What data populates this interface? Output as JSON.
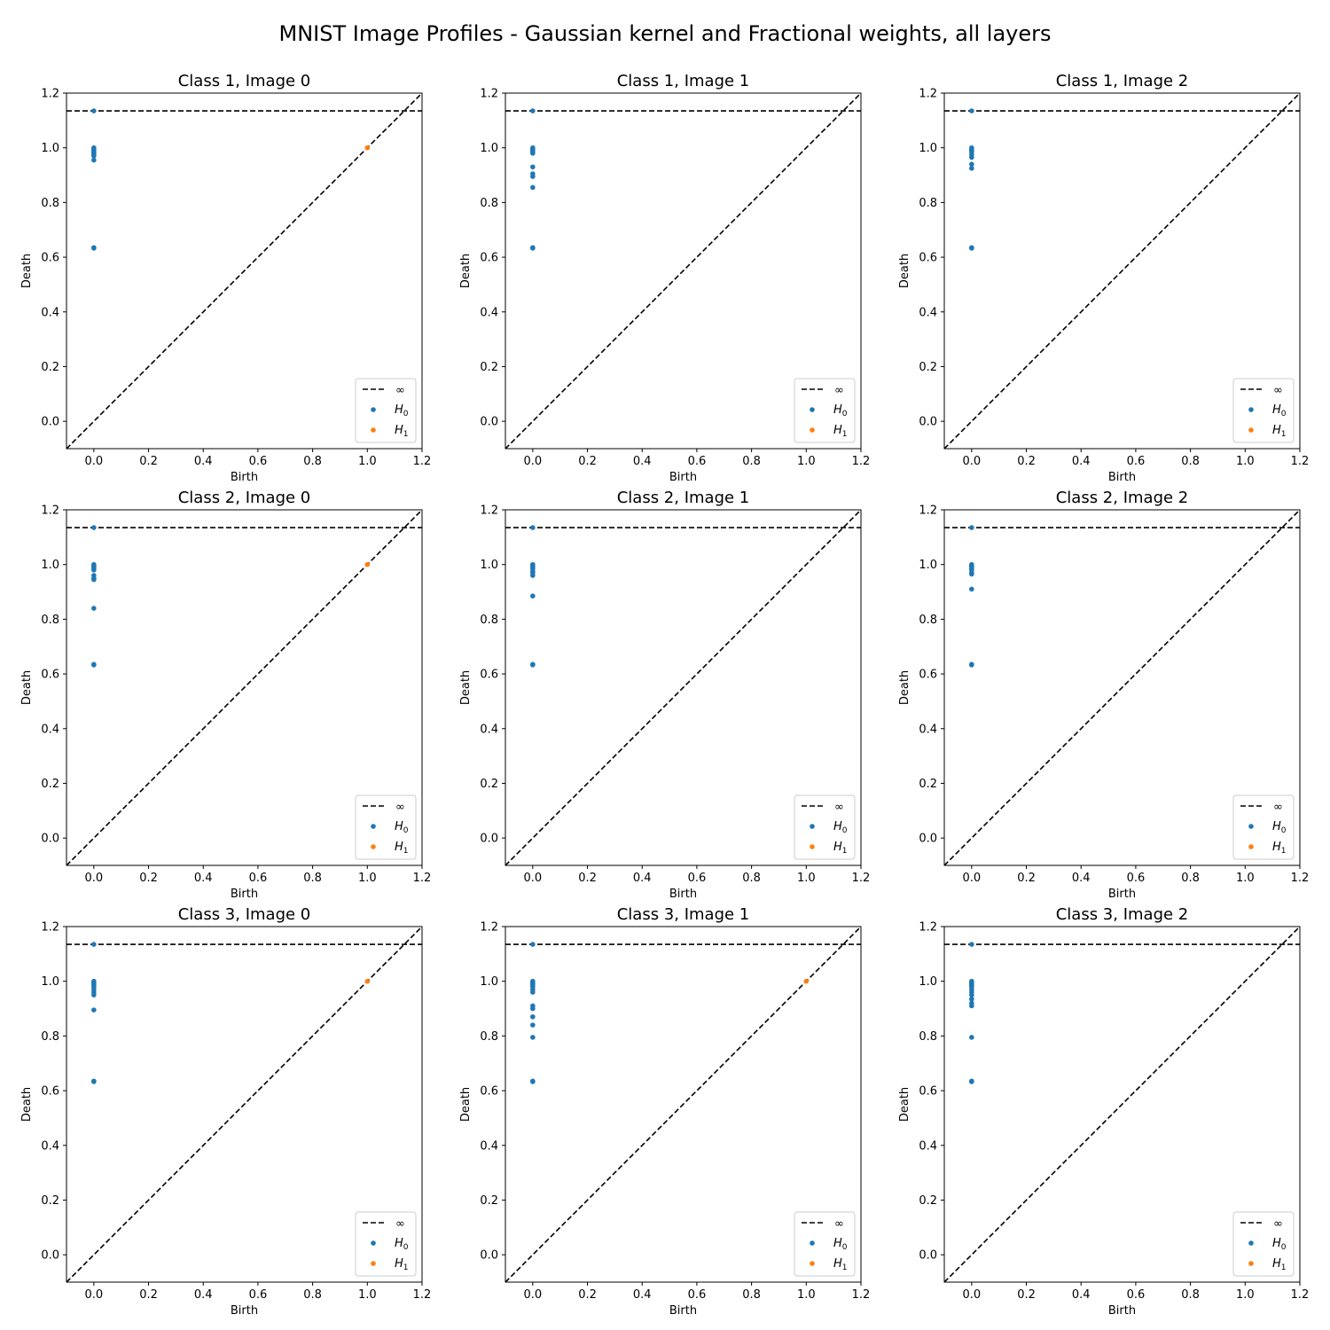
{
  "figure": {
    "suptitle": "MNIST Image Profiles - Gaussian kernel and Fractional weights, all layers"
  },
  "colors": {
    "H0": "#1f77b4",
    "H1": "#ff7f0e",
    "lines": "#000000"
  },
  "chart_data": [
    {
      "type": "scatter",
      "title": "Class 1, Image 0",
      "xlabel": "Birth",
      "ylabel": "Death",
      "xlim": [
        -0.1,
        1.2
      ],
      "ylim": [
        -0.1,
        1.2
      ],
      "xticks": [
        "0.0",
        "0.2",
        "0.4",
        "0.6",
        "0.8",
        "1.0",
        "1.2"
      ],
      "yticks": [
        "0.0",
        "0.2",
        "0.4",
        "0.6",
        "0.8",
        "1.0",
        "1.2"
      ],
      "infinity_level": 1.135,
      "legend": {
        "position": "lower-right",
        "entries": [
          "∞",
          "H0",
          "H1"
        ]
      },
      "series": [
        {
          "name": "H0",
          "points": [
            [
              0,
              1.135
            ],
            [
              0,
              1.0
            ],
            [
              0,
              0.995
            ],
            [
              0,
              0.99
            ],
            [
              0,
              0.985
            ],
            [
              0,
              0.98
            ],
            [
              0,
              0.975
            ],
            [
              0,
              0.97
            ],
            [
              0,
              0.955
            ],
            [
              0,
              0.635
            ],
            [
              0,
              0.633
            ]
          ]
        },
        {
          "name": "H1",
          "points": [
            [
              1.0,
              1.0
            ]
          ]
        }
      ]
    },
    {
      "type": "scatter",
      "title": "Class 1, Image 1",
      "xlabel": "Birth",
      "ylabel": "Death",
      "xlim": [
        -0.1,
        1.2
      ],
      "ylim": [
        -0.1,
        1.2
      ],
      "xticks": [
        "0.0",
        "0.2",
        "0.4",
        "0.6",
        "0.8",
        "1.0",
        "1.2"
      ],
      "yticks": [
        "0.0",
        "0.2",
        "0.4",
        "0.6",
        "0.8",
        "1.0",
        "1.2"
      ],
      "infinity_level": 1.135,
      "legend": {
        "position": "lower-right",
        "entries": [
          "∞",
          "H0",
          "H1"
        ]
      },
      "series": [
        {
          "name": "H0",
          "points": [
            [
              0,
              1.135
            ],
            [
              0,
              1.0
            ],
            [
              0,
              0.995
            ],
            [
              0,
              0.99
            ],
            [
              0,
              0.985
            ],
            [
              0,
              0.98
            ],
            [
              0,
              0.93
            ],
            [
              0,
              0.905
            ],
            [
              0,
              0.895
            ],
            [
              0,
              0.855
            ],
            [
              0,
              0.635
            ],
            [
              0,
              0.633
            ]
          ]
        },
        {
          "name": "H1",
          "points": []
        }
      ]
    },
    {
      "type": "scatter",
      "title": "Class 1, Image 2",
      "xlabel": "Birth",
      "ylabel": "Death",
      "xlim": [
        -0.1,
        1.2
      ],
      "ylim": [
        -0.1,
        1.2
      ],
      "xticks": [
        "0.0",
        "0.2",
        "0.4",
        "0.6",
        "0.8",
        "1.0",
        "1.2"
      ],
      "yticks": [
        "0.0",
        "0.2",
        "0.4",
        "0.6",
        "0.8",
        "1.0",
        "1.2"
      ],
      "infinity_level": 1.135,
      "legend": {
        "position": "lower-right",
        "entries": [
          "∞",
          "H0",
          "H1"
        ]
      },
      "series": [
        {
          "name": "H0",
          "points": [
            [
              0,
              1.135
            ],
            [
              0,
              1.0
            ],
            [
              0,
              0.995
            ],
            [
              0,
              0.99
            ],
            [
              0,
              0.985
            ],
            [
              0,
              0.975
            ],
            [
              0,
              0.965
            ],
            [
              0,
              0.94
            ],
            [
              0,
              0.925
            ],
            [
              0,
              0.635
            ],
            [
              0,
              0.633
            ]
          ]
        },
        {
          "name": "H1",
          "points": []
        }
      ]
    },
    {
      "type": "scatter",
      "title": "Class 2, Image 0",
      "xlabel": "Birth",
      "ylabel": "Death",
      "xlim": [
        -0.1,
        1.2
      ],
      "ylim": [
        -0.1,
        1.2
      ],
      "xticks": [
        "0.0",
        "0.2",
        "0.4",
        "0.6",
        "0.8",
        "1.0",
        "1.2"
      ],
      "yticks": [
        "0.0",
        "0.2",
        "0.4",
        "0.6",
        "0.8",
        "1.0",
        "1.2"
      ],
      "infinity_level": 1.135,
      "legend": {
        "position": "lower-right",
        "entries": [
          "∞",
          "H0",
          "H1"
        ]
      },
      "series": [
        {
          "name": "H0",
          "points": [
            [
              0,
              1.135
            ],
            [
              0,
              1.0
            ],
            [
              0,
              0.995
            ],
            [
              0,
              0.99
            ],
            [
              0,
              0.985
            ],
            [
              0,
              0.98
            ],
            [
              0,
              0.96
            ],
            [
              0,
              0.95
            ],
            [
              0,
              0.945
            ],
            [
              0,
              0.84
            ],
            [
              0,
              0.635
            ],
            [
              0,
              0.633
            ]
          ]
        },
        {
          "name": "H1",
          "points": [
            [
              1.0,
              1.0
            ]
          ]
        }
      ]
    },
    {
      "type": "scatter",
      "title": "Class 2, Image 1",
      "xlabel": "Birth",
      "ylabel": "Death",
      "xlim": [
        -0.1,
        1.2
      ],
      "ylim": [
        -0.1,
        1.2
      ],
      "xticks": [
        "0.0",
        "0.2",
        "0.4",
        "0.6",
        "0.8",
        "1.0",
        "1.2"
      ],
      "yticks": [
        "0.0",
        "0.2",
        "0.4",
        "0.6",
        "0.8",
        "1.0",
        "1.2"
      ],
      "infinity_level": 1.135,
      "legend": {
        "position": "lower-right",
        "entries": [
          "∞",
          "H0",
          "H1"
        ]
      },
      "series": [
        {
          "name": "H0",
          "points": [
            [
              0,
              1.135
            ],
            [
              0,
              1.0
            ],
            [
              0,
              0.995
            ],
            [
              0,
              0.99
            ],
            [
              0,
              0.985
            ],
            [
              0,
              0.975
            ],
            [
              0,
              0.97
            ],
            [
              0,
              0.96
            ],
            [
              0,
              0.885
            ],
            [
              0,
              0.635
            ],
            [
              0,
              0.633
            ]
          ]
        },
        {
          "name": "H1",
          "points": []
        }
      ]
    },
    {
      "type": "scatter",
      "title": "Class 2, Image 2",
      "xlabel": "Birth",
      "ylabel": "Death",
      "xlim": [
        -0.1,
        1.2
      ],
      "ylim": [
        -0.1,
        1.2
      ],
      "xticks": [
        "0.0",
        "0.2",
        "0.4",
        "0.6",
        "0.8",
        "1.0",
        "1.2"
      ],
      "yticks": [
        "0.0",
        "0.2",
        "0.4",
        "0.6",
        "0.8",
        "1.0",
        "1.2"
      ],
      "infinity_level": 1.135,
      "legend": {
        "position": "lower-right",
        "entries": [
          "∞",
          "H0",
          "H1"
        ]
      },
      "series": [
        {
          "name": "H0",
          "points": [
            [
              0,
              1.135
            ],
            [
              0,
              1.0
            ],
            [
              0,
              0.995
            ],
            [
              0,
              0.99
            ],
            [
              0,
              0.985
            ],
            [
              0,
              0.98
            ],
            [
              0,
              0.97
            ],
            [
              0,
              0.965
            ],
            [
              0,
              0.91
            ],
            [
              0,
              0.635
            ],
            [
              0,
              0.633
            ]
          ]
        },
        {
          "name": "H1",
          "points": []
        }
      ]
    },
    {
      "type": "scatter",
      "title": "Class 3, Image 0",
      "xlabel": "Birth",
      "ylabel": "Death",
      "xlim": [
        -0.1,
        1.2
      ],
      "ylim": [
        -0.1,
        1.2
      ],
      "xticks": [
        "0.0",
        "0.2",
        "0.4",
        "0.6",
        "0.8",
        "1.0",
        "1.2"
      ],
      "yticks": [
        "0.0",
        "0.2",
        "0.4",
        "0.6",
        "0.8",
        "1.0",
        "1.2"
      ],
      "infinity_level": 1.135,
      "legend": {
        "position": "lower-right",
        "entries": [
          "∞",
          "H0",
          "H1"
        ]
      },
      "series": [
        {
          "name": "H0",
          "points": [
            [
              0,
              1.135
            ],
            [
              0,
              1.0
            ],
            [
              0,
              0.995
            ],
            [
              0,
              0.99
            ],
            [
              0,
              0.985
            ],
            [
              0,
              0.98
            ],
            [
              0,
              0.97
            ],
            [
              0,
              0.96
            ],
            [
              0,
              0.95
            ],
            [
              0,
              0.895
            ],
            [
              0,
              0.635
            ],
            [
              0,
              0.633
            ]
          ]
        },
        {
          "name": "H1",
          "points": [
            [
              1.0,
              1.0
            ]
          ]
        }
      ]
    },
    {
      "type": "scatter",
      "title": "Class 3, Image 1",
      "xlabel": "Birth",
      "ylabel": "Death",
      "xlim": [
        -0.1,
        1.2
      ],
      "ylim": [
        -0.1,
        1.2
      ],
      "xticks": [
        "0.0",
        "0.2",
        "0.4",
        "0.6",
        "0.8",
        "1.0",
        "1.2"
      ],
      "yticks": [
        "0.0",
        "0.2",
        "0.4",
        "0.6",
        "0.8",
        "1.0",
        "1.2"
      ],
      "infinity_level": 1.135,
      "legend": {
        "position": "lower-right",
        "entries": [
          "∞",
          "H0",
          "H1"
        ]
      },
      "series": [
        {
          "name": "H0",
          "points": [
            [
              0,
              1.135
            ],
            [
              0,
              1.0
            ],
            [
              0,
              0.995
            ],
            [
              0,
              0.99
            ],
            [
              0,
              0.985
            ],
            [
              0,
              0.98
            ],
            [
              0,
              0.97
            ],
            [
              0,
              0.96
            ],
            [
              0,
              0.91
            ],
            [
              0,
              0.9
            ],
            [
              0,
              0.87
            ],
            [
              0,
              0.84
            ],
            [
              0,
              0.795
            ],
            [
              0,
              0.635
            ],
            [
              0,
              0.633
            ]
          ]
        },
        {
          "name": "H1",
          "points": [
            [
              1.0,
              1.0
            ]
          ]
        }
      ]
    },
    {
      "type": "scatter",
      "title": "Class 3, Image 2",
      "xlabel": "Birth",
      "ylabel": "Death",
      "xlim": [
        -0.1,
        1.2
      ],
      "ylim": [
        -0.1,
        1.2
      ],
      "xticks": [
        "0.0",
        "0.2",
        "0.4",
        "0.6",
        "0.8",
        "1.0",
        "1.2"
      ],
      "yticks": [
        "0.0",
        "0.2",
        "0.4",
        "0.6",
        "0.8",
        "1.0",
        "1.2"
      ],
      "infinity_level": 1.135,
      "legend": {
        "position": "lower-right",
        "entries": [
          "∞",
          "H0",
          "H1"
        ]
      },
      "series": [
        {
          "name": "H0",
          "points": [
            [
              0,
              1.135
            ],
            [
              0,
              1.0
            ],
            [
              0,
              0.995
            ],
            [
              0,
              0.99
            ],
            [
              0,
              0.985
            ],
            [
              0,
              0.98
            ],
            [
              0,
              0.97
            ],
            [
              0,
              0.96
            ],
            [
              0,
              0.95
            ],
            [
              0,
              0.935
            ],
            [
              0,
              0.92
            ],
            [
              0,
              0.91
            ],
            [
              0,
              0.795
            ],
            [
              0,
              0.635
            ],
            [
              0,
              0.633
            ]
          ]
        },
        {
          "name": "H1",
          "points": []
        }
      ]
    }
  ]
}
